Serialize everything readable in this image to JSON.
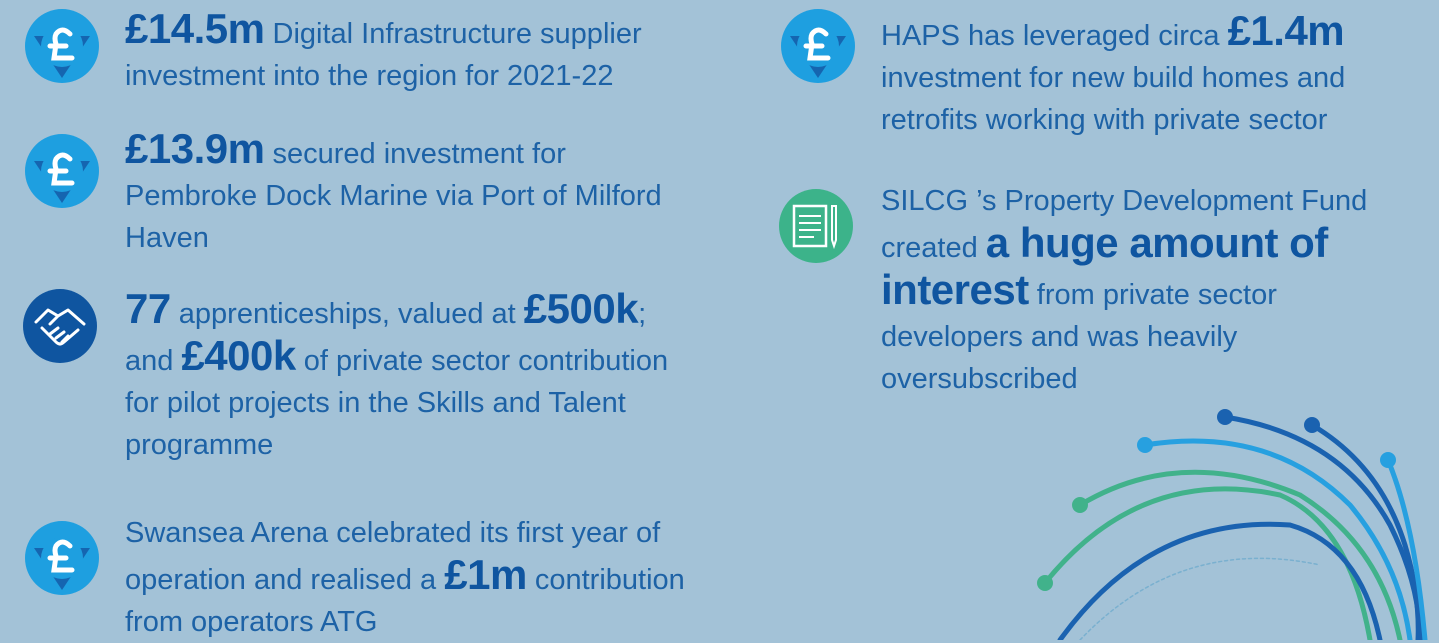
{
  "items": [
    {
      "parts": [
        "£14.5m",
        " Digital Infrastructure supplier investment into the region for 2021-22"
      ]
    },
    {
      "parts": [
        "£13.9m",
        " secured investment for Pembroke Dock Marine via Port of Milford Haven"
      ]
    },
    {
      "parts": [
        "77",
        " apprenticeships, valued at ",
        "£500k",
        "; and ",
        "£400k",
        " of private sector contribution for pilot projects in the Skills and Talent programme"
      ]
    },
    {
      "parts": [
        "Swansea Arena celebrated its first year of operation and realised a ",
        "£1m",
        " contribution from operators ATG"
      ]
    },
    {
      "parts": [
        "HAPS has leveraged circa ",
        "£1.4m",
        " investment for new build homes and retrofits working with private sector"
      ]
    },
    {
      "parts": [
        "SILCG ’s Property Development Fund created ",
        "a huge amount of interest",
        " from private sector developers and was heavily oversubscribed"
      ]
    }
  ]
}
